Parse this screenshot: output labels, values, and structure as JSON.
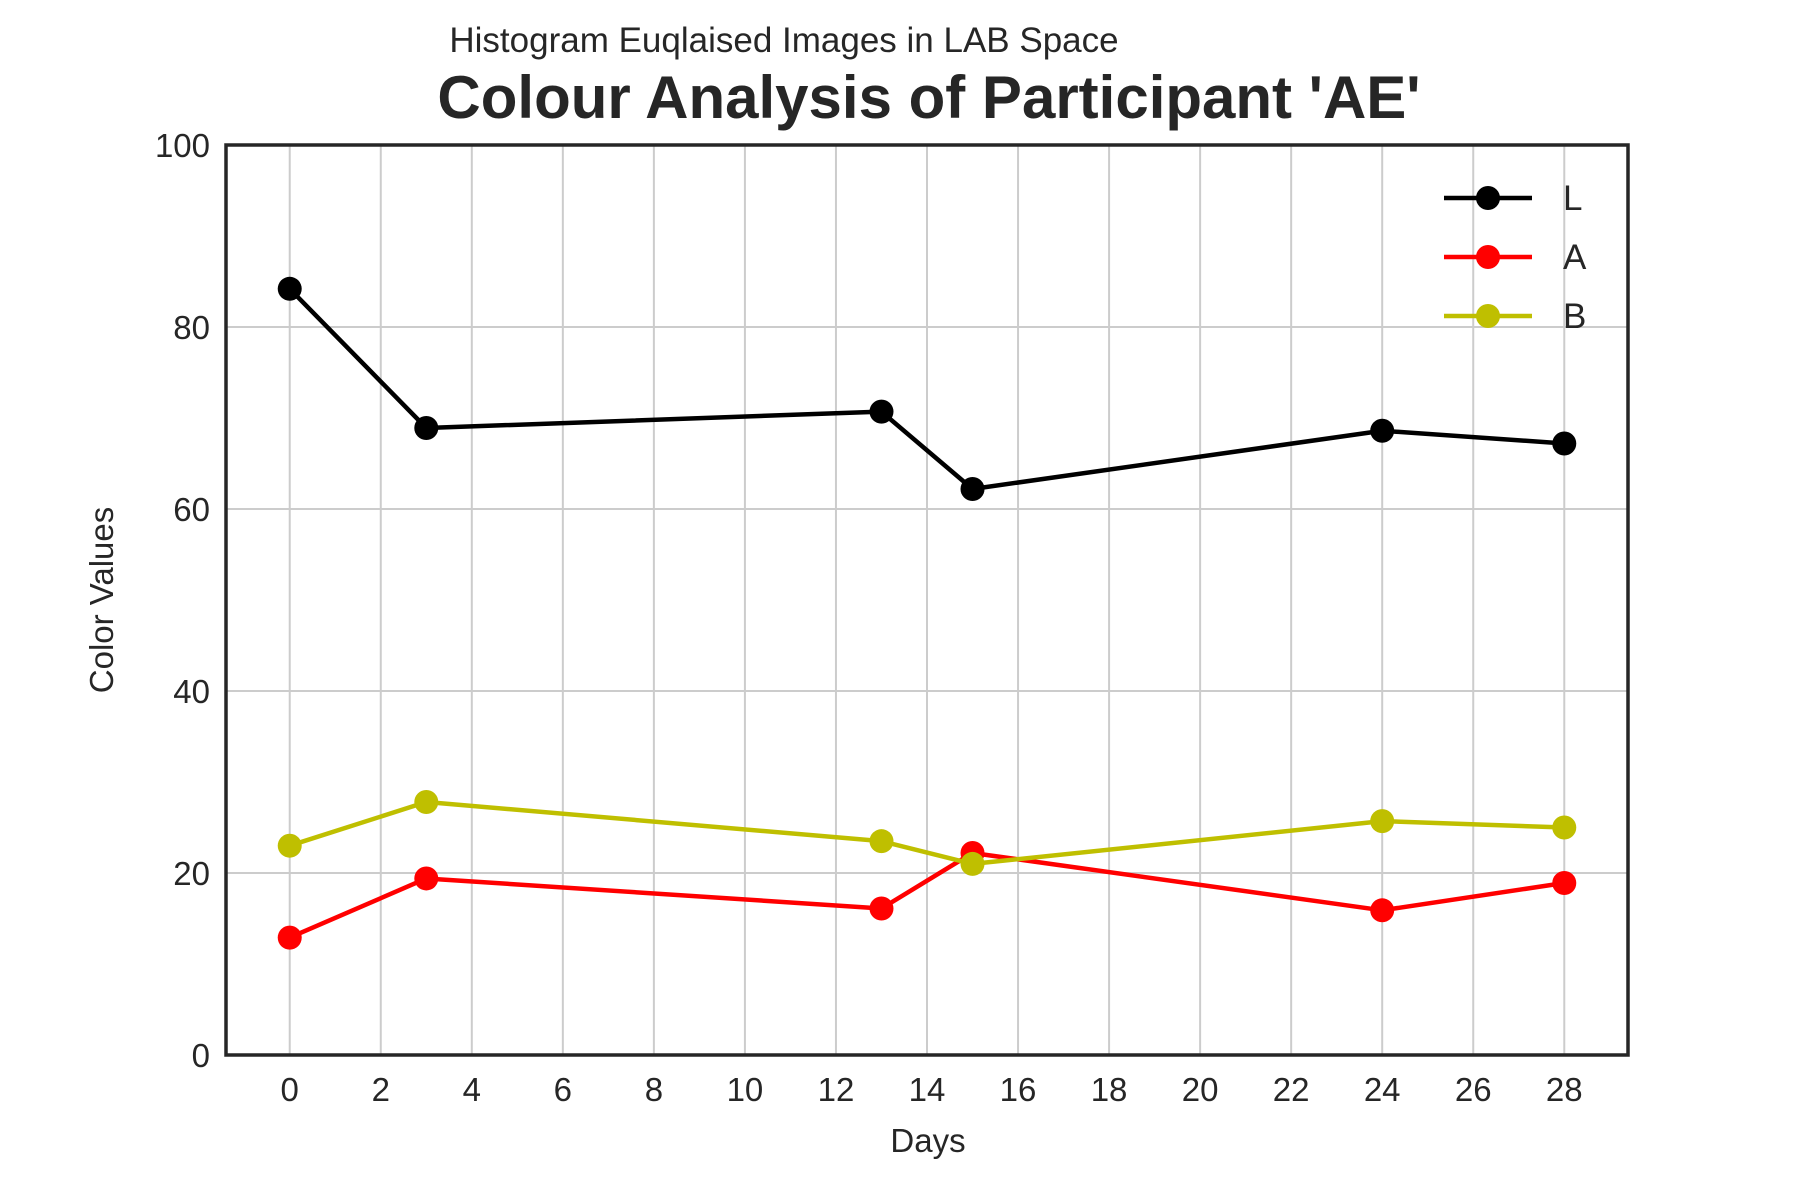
{
  "chart_data": {
    "type": "line",
    "subtitle": "Histogram Euqlaised Images in LAB Space",
    "title": "Colour Analysis of Participant 'AE'",
    "xlabel": "Days",
    "ylabel": "Color Values",
    "xlim": [
      -1.4,
      29.4
    ],
    "ylim": [
      0,
      100
    ],
    "xticks": [
      0,
      2,
      4,
      6,
      8,
      10,
      12,
      14,
      16,
      18,
      20,
      22,
      24,
      26,
      28
    ],
    "yticks": [
      0,
      20,
      40,
      60,
      80,
      100
    ],
    "x": [
      0,
      3,
      13,
      15,
      24,
      28
    ],
    "series": [
      {
        "name": "L",
        "color": "#000000",
        "values": [
          84.2,
          68.9,
          70.7,
          62.2,
          68.6,
          67.2
        ]
      },
      {
        "name": "A",
        "color": "#ff0000",
        "values": [
          12.9,
          19.4,
          16.1,
          22.2,
          15.9,
          18.9
        ]
      },
      {
        "name": "B",
        "color": "#bfbf00",
        "values": [
          23.0,
          27.8,
          23.5,
          21.0,
          25.7,
          25.0
        ]
      }
    ],
    "grid": true,
    "legend_position": "top-right",
    "marker": "circle"
  }
}
